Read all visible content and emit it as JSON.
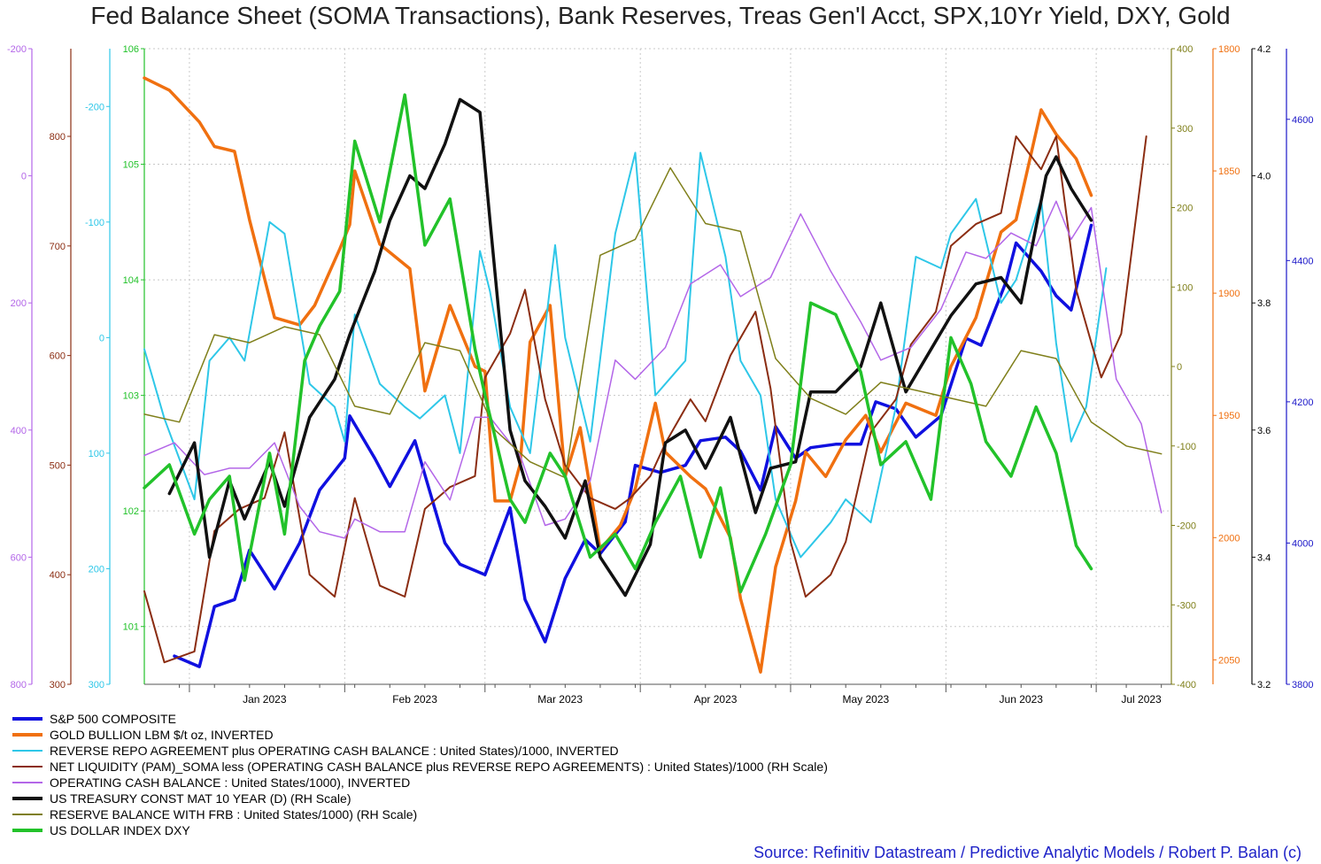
{
  "chart_data": {
    "type": "line",
    "title": "Fed Balance Sheet (SOMA Transactions), Bank Reserves, Treas Gen'l Acct, SPX,10Yr Yield, DXY, Gold",
    "source": "Source: Refinitiv Datastream / Predictive Analytic Models / Robert P. Balan (c)",
    "x_tick_labels": [
      "Jan 2023",
      "Feb 2023",
      "Mar 2023",
      "Apr 2023",
      "May 2023",
      "Jun 2023",
      "Jul 2023"
    ],
    "x_range": [
      "2022-12-23",
      "2023-07-16"
    ],
    "grid": true,
    "axes": [
      {
        "id": "tga",
        "side": "left",
        "color": "#b366e8",
        "range": [
          800,
          -200
        ],
        "ticks": [
          "-200",
          "0",
          "200",
          "400",
          "600",
          "800"
        ],
        "tick_values": [
          -200,
          0,
          200,
          400,
          600,
          800
        ]
      },
      {
        "id": "netliq",
        "side": "left",
        "color": "#8b2d12",
        "range": [
          300,
          880
        ],
        "ticks": [
          "800",
          "700",
          "600",
          "500",
          "400",
          "300"
        ],
        "tick_values": [
          800,
          700,
          600,
          500,
          400,
          300
        ]
      },
      {
        "id": "rrp",
        "side": "left",
        "color": "#2ec7e8",
        "range": [
          300,
          -250
        ],
        "ticks": [
          "-200",
          "-100",
          "0",
          "100",
          "200",
          "300"
        ],
        "tick_values": [
          -200,
          -100,
          0,
          100,
          200,
          300
        ]
      },
      {
        "id": "dxy",
        "side": "left",
        "color": "#22c22a",
        "range": [
          100.5,
          106
        ],
        "ticks": [
          "106",
          "105",
          "104",
          "103",
          "102",
          "101"
        ],
        "tick_values": [
          106,
          105,
          104,
          103,
          102,
          101
        ]
      },
      {
        "id": "reserves",
        "side": "right",
        "color": "#7f7f1a",
        "range": [
          -400,
          400
        ],
        "ticks": [
          "400",
          "300",
          "200",
          "100",
          "0",
          "-100",
          "-200",
          "-300",
          "-400"
        ],
        "tick_values": [
          400,
          300,
          200,
          100,
          0,
          -100,
          -200,
          -300,
          -400
        ]
      },
      {
        "id": "gold",
        "side": "right",
        "color": "#f07010",
        "range": [
          2060,
          1800
        ],
        "ticks": [
          "1800",
          "1850",
          "1900",
          "1950",
          "2000",
          "2050"
        ],
        "tick_values": [
          1800,
          1850,
          1900,
          1950,
          2000,
          2050
        ]
      },
      {
        "id": "tnx",
        "side": "right",
        "color": "#111111",
        "range": [
          3.2,
          4.2
        ],
        "ticks": [
          "4.2",
          "4.0",
          "3.8",
          "3.6",
          "3.4",
          "3.2"
        ],
        "tick_values": [
          4.2,
          4.0,
          3.8,
          3.6,
          3.4,
          3.2
        ]
      },
      {
        "id": "spx",
        "side": "right",
        "color": "#1a16c8",
        "range": [
          3800,
          4700
        ],
        "ticks": [
          "4600",
          "4400",
          "4200",
          "4000",
          "3800"
        ],
        "tick_values": [
          4600,
          4400,
          4200,
          4000,
          3800
        ]
      }
    ],
    "series": [
      {
        "name": "S&P 500 COMPOSITE",
        "axis": "spx",
        "color": "#1010e0",
        "width": 3.5,
        "x": [
          "2022-12-29",
          "2023-01-03",
          "2023-01-06",
          "2023-01-10",
          "2023-01-13",
          "2023-01-18",
          "2023-01-23",
          "2023-01-27",
          "2023-02-01",
          "2023-02-02",
          "2023-02-07",
          "2023-02-10",
          "2023-02-15",
          "2023-02-21",
          "2023-02-24",
          "2023-03-01",
          "2023-03-06",
          "2023-03-09",
          "2023-03-13",
          "2023-03-17",
          "2023-03-21",
          "2023-03-24",
          "2023-03-29",
          "2023-03-31",
          "2023-04-05",
          "2023-04-10",
          "2023-04-13",
          "2023-04-18",
          "2023-04-21",
          "2023-04-25",
          "2023-04-28",
          "2023-05-02",
          "2023-05-05",
          "2023-05-10",
          "2023-05-15",
          "2023-05-18",
          "2023-05-22",
          "2023-05-26",
          "2023-05-31",
          "2023-06-05",
          "2023-06-08",
          "2023-06-13",
          "2023-06-15",
          "2023-06-20",
          "2023-06-23",
          "2023-06-26",
          "2023-06-30"
        ],
        "y": [
          3840,
          3825,
          3910,
          3920,
          3990,
          3935,
          4000,
          4075,
          4120,
          4180,
          4120,
          4080,
          4145,
          4000,
          3970,
          3955,
          4050,
          3920,
          3860,
          3950,
          4005,
          3985,
          4030,
          4110,
          4100,
          4110,
          4145,
          4150,
          4130,
          4075,
          4165,
          4120,
          4135,
          4140,
          4140,
          4200,
          4190,
          4150,
          4180,
          4290,
          4280,
          4370,
          4425,
          4385,
          4350,
          4330,
          4450
        ]
      },
      {
        "name": "GOLD BULLION LBM $/t oz, INVERTED",
        "axis": "gold",
        "color": "#f07010",
        "width": 3.5,
        "x": [
          "2022-12-23",
          "2022-12-28",
          "2023-01-03",
          "2023-01-06",
          "2023-01-10",
          "2023-01-13",
          "2023-01-18",
          "2023-01-23",
          "2023-01-26",
          "2023-01-31",
          "2023-02-02",
          "2023-02-03",
          "2023-02-08",
          "2023-02-14",
          "2023-02-17",
          "2023-02-22",
          "2023-02-27",
          "2023-03-01",
          "2023-03-03",
          "2023-03-06",
          "2023-03-08",
          "2023-03-10",
          "2023-03-14",
          "2023-03-17",
          "2023-03-20",
          "2023-03-24",
          "2023-03-28",
          "2023-03-31",
          "2023-04-04",
          "2023-04-06",
          "2023-04-11",
          "2023-04-14",
          "2023-04-19",
          "2023-04-21",
          "2023-04-25",
          "2023-04-28",
          "2023-05-02",
          "2023-05-04",
          "2023-05-08",
          "2023-05-12",
          "2023-05-16",
          "2023-05-19",
          "2023-05-24",
          "2023-05-30",
          "2023-06-02",
          "2023-06-07",
          "2023-06-12",
          "2023-06-15",
          "2023-06-20",
          "2023-06-23",
          "2023-06-27",
          "2023-06-30"
        ],
        "y": [
          1812,
          1817,
          1830,
          1840,
          1842,
          1870,
          1910,
          1913,
          1905,
          1882,
          1872,
          1850,
          1880,
          1890,
          1940,
          1905,
          1930,
          1932,
          1985,
          1985,
          1970,
          1920,
          1905,
          1975,
          1955,
          2005,
          1995,
          1980,
          1945,
          1965,
          1975,
          1980,
          2000,
          2025,
          2055,
          2012,
          1985,
          1965,
          1975,
          1960,
          1950,
          1965,
          1945,
          1950,
          1930,
          1910,
          1875,
          1870,
          1825,
          1835,
          1845,
          1860
        ]
      },
      {
        "name": "REVERSE REPO AGREEMENT plus OPERATING CASH BALANCE : United States)/1000, INVERTED",
        "axis": "rrp",
        "color": "#2ec7e8",
        "width": 2,
        "x": [
          "2022-12-23",
          "2022-12-27",
          "2023-01-02",
          "2023-01-05",
          "2023-01-09",
          "2023-01-12",
          "2023-01-17",
          "2023-01-20",
          "2023-01-25",
          "2023-01-30",
          "2023-02-01",
          "2023-02-03",
          "2023-02-08",
          "2023-02-13",
          "2023-02-16",
          "2023-02-21",
          "2023-02-24",
          "2023-02-28",
          "2023-03-02",
          "2023-03-06",
          "2023-03-10",
          "2023-03-15",
          "2023-03-17",
          "2023-03-22",
          "2023-03-27",
          "2023-03-31",
          "2023-04-04",
          "2023-04-10",
          "2023-04-13",
          "2023-04-18",
          "2023-04-21",
          "2023-04-25",
          "2023-04-28",
          "2023-05-03",
          "2023-05-05",
          "2023-05-09",
          "2023-05-12",
          "2023-05-17",
          "2023-05-22",
          "2023-05-26",
          "2023-05-31",
          "2023-06-02",
          "2023-06-07",
          "2023-06-12",
          "2023-06-15",
          "2023-06-20",
          "2023-06-23",
          "2023-06-26",
          "2023-06-29",
          "2023-07-03"
        ],
        "y": [
          10,
          70,
          140,
          20,
          0,
          20,
          -100,
          -90,
          40,
          60,
          90,
          -20,
          40,
          60,
          70,
          50,
          100,
          -75,
          -40,
          60,
          100,
          -80,
          0,
          90,
          -90,
          -160,
          50,
          20,
          -160,
          -70,
          20,
          50,
          140,
          190,
          180,
          160,
          140,
          160,
          60,
          -70,
          -60,
          -90,
          -120,
          -30,
          -50,
          -120,
          5,
          90,
          60,
          -60
        ]
      },
      {
        "name": "NET LIQUIDITY (PAM)_SOMA less (OPERATING CASH BALANCE plus REVERSE REPO AGREEMENTS) : United States)/1000 (RH Scale)",
        "axis": "netliq",
        "color": "#8b2d12",
        "width": 2,
        "x": [
          "2022-12-23",
          "2022-12-27",
          "2023-01-02",
          "2023-01-06",
          "2023-01-11",
          "2023-01-16",
          "2023-01-20",
          "2023-01-25",
          "2023-01-30",
          "2023-02-03",
          "2023-02-08",
          "2023-02-13",
          "2023-02-17",
          "2023-02-22",
          "2023-02-27",
          "2023-03-01",
          "2023-03-06",
          "2023-03-09",
          "2023-03-13",
          "2023-03-17",
          "2023-03-22",
          "2023-03-27",
          "2023-03-30",
          "2023-04-03",
          "2023-04-06",
          "2023-04-11",
          "2023-04-14",
          "2023-04-19",
          "2023-04-24",
          "2023-04-27",
          "2023-05-01",
          "2023-05-04",
          "2023-05-09",
          "2023-05-12",
          "2023-05-17",
          "2023-05-22",
          "2023-05-25",
          "2023-05-30",
          "2023-06-02",
          "2023-06-07",
          "2023-06-12",
          "2023-06-15",
          "2023-06-20",
          "2023-06-23",
          "2023-06-27",
          "2023-07-02",
          "2023-07-06",
          "2023-07-11"
        ],
        "y": [
          385,
          320,
          330,
          440,
          460,
          470,
          530,
          400,
          380,
          470,
          390,
          380,
          460,
          480,
          490,
          580,
          620,
          660,
          560,
          500,
          470,
          460,
          470,
          490,
          520,
          560,
          540,
          600,
          640,
          570,
          430,
          380,
          400,
          430,
          530,
          560,
          610,
          640,
          700,
          720,
          730,
          800,
          770,
          800,
          660,
          580,
          620,
          800
        ]
      },
      {
        "name": "OPERATING CASH BALANCE : United States/1000), INVERTED",
        "axis": "tga",
        "color": "#b366e8",
        "width": 1.5,
        "x": [
          "2022-12-23",
          "2022-12-29",
          "2023-01-04",
          "2023-01-09",
          "2023-01-13",
          "2023-01-18",
          "2023-01-23",
          "2023-01-27",
          "2023-02-01",
          "2023-02-03",
          "2023-02-08",
          "2023-02-13",
          "2023-02-17",
          "2023-02-22",
          "2023-02-27",
          "2023-03-02",
          "2023-03-08",
          "2023-03-13",
          "2023-03-17",
          "2023-03-22",
          "2023-03-27",
          "2023-03-31",
          "2023-04-06",
          "2023-04-11",
          "2023-04-17",
          "2023-04-21",
          "2023-04-27",
          "2023-05-03",
          "2023-05-09",
          "2023-05-15",
          "2023-05-19",
          "2023-05-25",
          "2023-05-31",
          "2023-06-05",
          "2023-06-09",
          "2023-06-14",
          "2023-06-19",
          "2023-06-23",
          "2023-06-26",
          "2023-06-30",
          "2023-07-05",
          "2023-07-10",
          "2023-07-14"
        ],
        "y": [
          440,
          420,
          470,
          460,
          460,
          420,
          520,
          560,
          570,
          540,
          560,
          560,
          450,
          510,
          380,
          380,
          440,
          550,
          540,
          480,
          290,
          320,
          270,
          170,
          140,
          190,
          160,
          60,
          150,
          230,
          290,
          270,
          210,
          120,
          130,
          90,
          110,
          40,
          100,
          50,
          320,
          390,
          530
        ]
      },
      {
        "name": "US TREASURY CONST MAT 10 YEAR (D) (RH Scale)",
        "axis": "tnx",
        "color": "#111111",
        "width": 3.5,
        "x": [
          "2022-12-28",
          "2023-01-02",
          "2023-01-05",
          "2023-01-09",
          "2023-01-12",
          "2023-01-17",
          "2023-01-20",
          "2023-01-25",
          "2023-01-30",
          "2023-02-02",
          "2023-02-07",
          "2023-02-10",
          "2023-02-14",
          "2023-02-17",
          "2023-02-21",
          "2023-02-24",
          "2023-02-28",
          "2023-03-02",
          "2023-03-06",
          "2023-03-09",
          "2023-03-13",
          "2023-03-17",
          "2023-03-21",
          "2023-03-24",
          "2023-03-29",
          "2023-04-03",
          "2023-04-06",
          "2023-04-10",
          "2023-04-14",
          "2023-04-19",
          "2023-04-24",
          "2023-04-27",
          "2023-05-02",
          "2023-05-05",
          "2023-05-10",
          "2023-05-15",
          "2023-05-19",
          "2023-05-24",
          "2023-05-30",
          "2023-06-02",
          "2023-06-07",
          "2023-06-12",
          "2023-06-16",
          "2023-06-21",
          "2023-06-23",
          "2023-06-26",
          "2023-06-30"
        ],
        "y": [
          3.5,
          3.58,
          3.4,
          3.52,
          3.46,
          3.55,
          3.48,
          3.62,
          3.68,
          3.75,
          3.85,
          3.93,
          4.0,
          3.98,
          4.05,
          4.12,
          4.1,
          3.93,
          3.6,
          3.52,
          3.48,
          3.43,
          3.52,
          3.4,
          3.34,
          3.42,
          3.58,
          3.6,
          3.54,
          3.62,
          3.47,
          3.54,
          3.55,
          3.66,
          3.66,
          3.7,
          3.8,
          3.66,
          3.74,
          3.78,
          3.83,
          3.84,
          3.8,
          4.0,
          4.03,
          3.98,
          3.93
        ]
      },
      {
        "name": "RESERVE BALANCE WITH FRB : United States/1000) (RH Scale)",
        "axis": "reserves",
        "color": "#7f7f1a",
        "width": 1.5,
        "x": [
          "2022-12-23",
          "2022-12-30",
          "2023-01-06",
          "2023-01-13",
          "2023-01-20",
          "2023-01-27",
          "2023-02-03",
          "2023-02-10",
          "2023-02-17",
          "2023-02-24",
          "2023-03-03",
          "2023-03-10",
          "2023-03-17",
          "2023-03-24",
          "2023-03-31",
          "2023-04-07",
          "2023-04-14",
          "2023-04-21",
          "2023-04-28",
          "2023-05-05",
          "2023-05-12",
          "2023-05-19",
          "2023-05-26",
          "2023-06-02",
          "2023-06-09",
          "2023-06-16",
          "2023-06-23",
          "2023-06-30",
          "2023-07-07",
          "2023-07-14"
        ],
        "y": [
          -60,
          -70,
          40,
          30,
          50,
          40,
          -50,
          -60,
          30,
          20,
          -80,
          -120,
          -140,
          140,
          160,
          250,
          180,
          170,
          10,
          -40,
          -60,
          -20,
          -30,
          -40,
          -50,
          20,
          10,
          -70,
          -100,
          -110
        ]
      },
      {
        "name": "US DOLLAR INDEX DXY",
        "axis": "dxy",
        "color": "#22c22a",
        "width": 3.5,
        "x": [
          "2022-12-23",
          "2022-12-28",
          "2023-01-02",
          "2023-01-05",
          "2023-01-09",
          "2023-01-12",
          "2023-01-17",
          "2023-01-20",
          "2023-01-24",
          "2023-01-27",
          "2023-01-31",
          "2023-02-03",
          "2023-02-08",
          "2023-02-13",
          "2023-02-17",
          "2023-02-22",
          "2023-02-27",
          "2023-03-01",
          "2023-03-06",
          "2023-03-09",
          "2023-03-14",
          "2023-03-17",
          "2023-03-22",
          "2023-03-27",
          "2023-03-31",
          "2023-04-04",
          "2023-04-09",
          "2023-04-13",
          "2023-04-17",
          "2023-04-21",
          "2023-04-26",
          "2023-05-01",
          "2023-05-05",
          "2023-05-10",
          "2023-05-15",
          "2023-05-19",
          "2023-05-24",
          "2023-05-29",
          "2023-06-02",
          "2023-06-06",
          "2023-06-09",
          "2023-06-14",
          "2023-06-19",
          "2023-06-23",
          "2023-06-27",
          "2023-06-30"
        ],
        "y": [
          102.2,
          102.4,
          101.8,
          102.1,
          102.3,
          101.4,
          102.5,
          101.8,
          103.3,
          103.6,
          103.9,
          105.2,
          104.5,
          105.6,
          104.3,
          104.7,
          103.4,
          103.0,
          102.1,
          101.9,
          102.5,
          102.3,
          101.6,
          101.8,
          101.5,
          101.9,
          102.3,
          101.6,
          102.2,
          101.3,
          101.8,
          102.4,
          103.8,
          103.7,
          103.2,
          102.4,
          102.6,
          102.1,
          103.5,
          103.1,
          102.6,
          102.3,
          102.9,
          102.5,
          101.7,
          101.5
        ]
      }
    ]
  }
}
